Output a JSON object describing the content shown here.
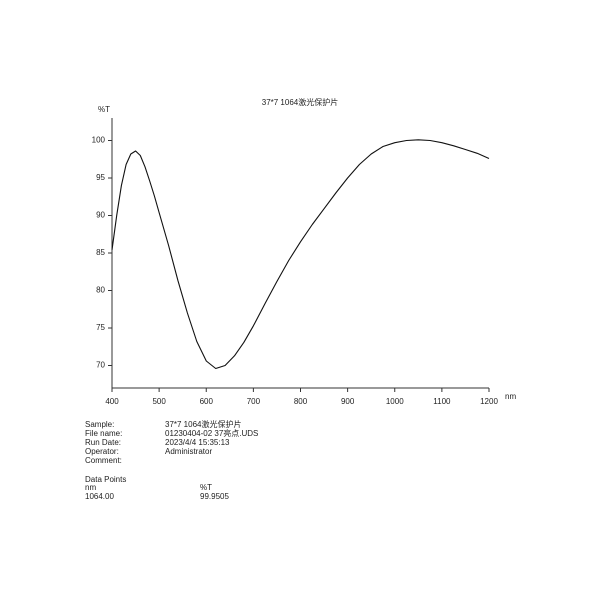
{
  "chart_data": {
    "type": "line",
    "title": "37*7 1064激光保护片",
    "xlabel": "nm",
    "ylabel": "%T",
    "x": [
      400,
      410,
      420,
      430,
      440,
      450,
      460,
      470,
      480,
      490,
      500,
      520,
      540,
      560,
      580,
      600,
      620,
      640,
      660,
      680,
      700,
      725,
      750,
      775,
      800,
      825,
      850,
      875,
      900,
      925,
      950,
      975,
      1000,
      1025,
      1050,
      1075,
      1100,
      1125,
      1150,
      1175,
      1200
    ],
    "series": [
      {
        "name": "%T",
        "color": "#111111",
        "values": [
          85.4,
          90,
          94,
          96.8,
          98.2,
          98.6,
          98,
          96.5,
          94.6,
          92.6,
          90.4,
          86,
          81.3,
          77,
          73.2,
          70.6,
          69.6,
          70,
          71.3,
          73.1,
          75.3,
          78.3,
          81.2,
          84,
          86.5,
          88.8,
          90.9,
          93,
          95,
          96.8,
          98.2,
          99.2,
          99.7,
          100,
          100.1,
          100,
          99.7,
          99.3,
          98.8,
          98.3,
          97.6
        ]
      }
    ],
    "xlim": [
      400,
      1200
    ],
    "xticks": [
      400,
      500,
      600,
      700,
      800,
      900,
      1000,
      1100,
      1200
    ],
    "ylim": [
      67,
      103
    ],
    "yticks": [
      70,
      75,
      80,
      85,
      90,
      95,
      100
    ],
    "grid": false
  },
  "info": {
    "rows": [
      [
        "Sample:",
        "37*7 1064激光保护片"
      ],
      [
        "File name:",
        "01230404-02 37亮点.UDS"
      ],
      [
        "Run Date:",
        "2023/4/4 15:35:13"
      ],
      [
        "Operator:",
        "Administrator"
      ],
      [
        "Comment:",
        ""
      ]
    ],
    "data_points": {
      "title": "Data Points",
      "header": [
        "nm",
        "%T"
      ],
      "row": [
        "1064.00",
        "99.9505"
      ]
    }
  }
}
